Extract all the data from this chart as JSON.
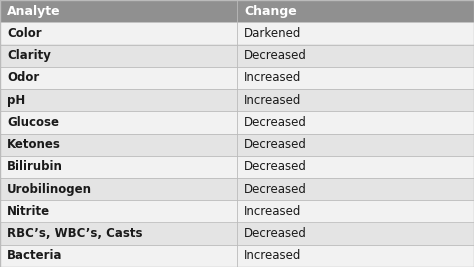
{
  "header": [
    "Analyte",
    "Change"
  ],
  "rows": [
    [
      "Color",
      "Darkened"
    ],
    [
      "Clarity",
      "Decreased"
    ],
    [
      "Odor",
      "Increased"
    ],
    [
      "pH",
      "Increased"
    ],
    [
      "Glucose",
      "Decreased"
    ],
    [
      "Ketones",
      "Decreased"
    ],
    [
      "Bilirubin",
      "Decreased"
    ],
    [
      "Urobilinogen",
      "Decreased"
    ],
    [
      "Nitrite",
      "Increased"
    ],
    [
      "RBC’s, WBC’s, Casts",
      "Decreased"
    ],
    [
      "Bacteria",
      "Increased"
    ]
  ],
  "header_bg": "#909090",
  "header_text_color": "#ffffff",
  "row_bg_odd": "#f2f2f2",
  "row_bg_even": "#e4e4e4",
  "border_color": "#bbbbbb",
  "text_color": "#1a1a1a",
  "col_split": 0.5,
  "font_size": 8.5,
  "header_font_size": 9.0
}
